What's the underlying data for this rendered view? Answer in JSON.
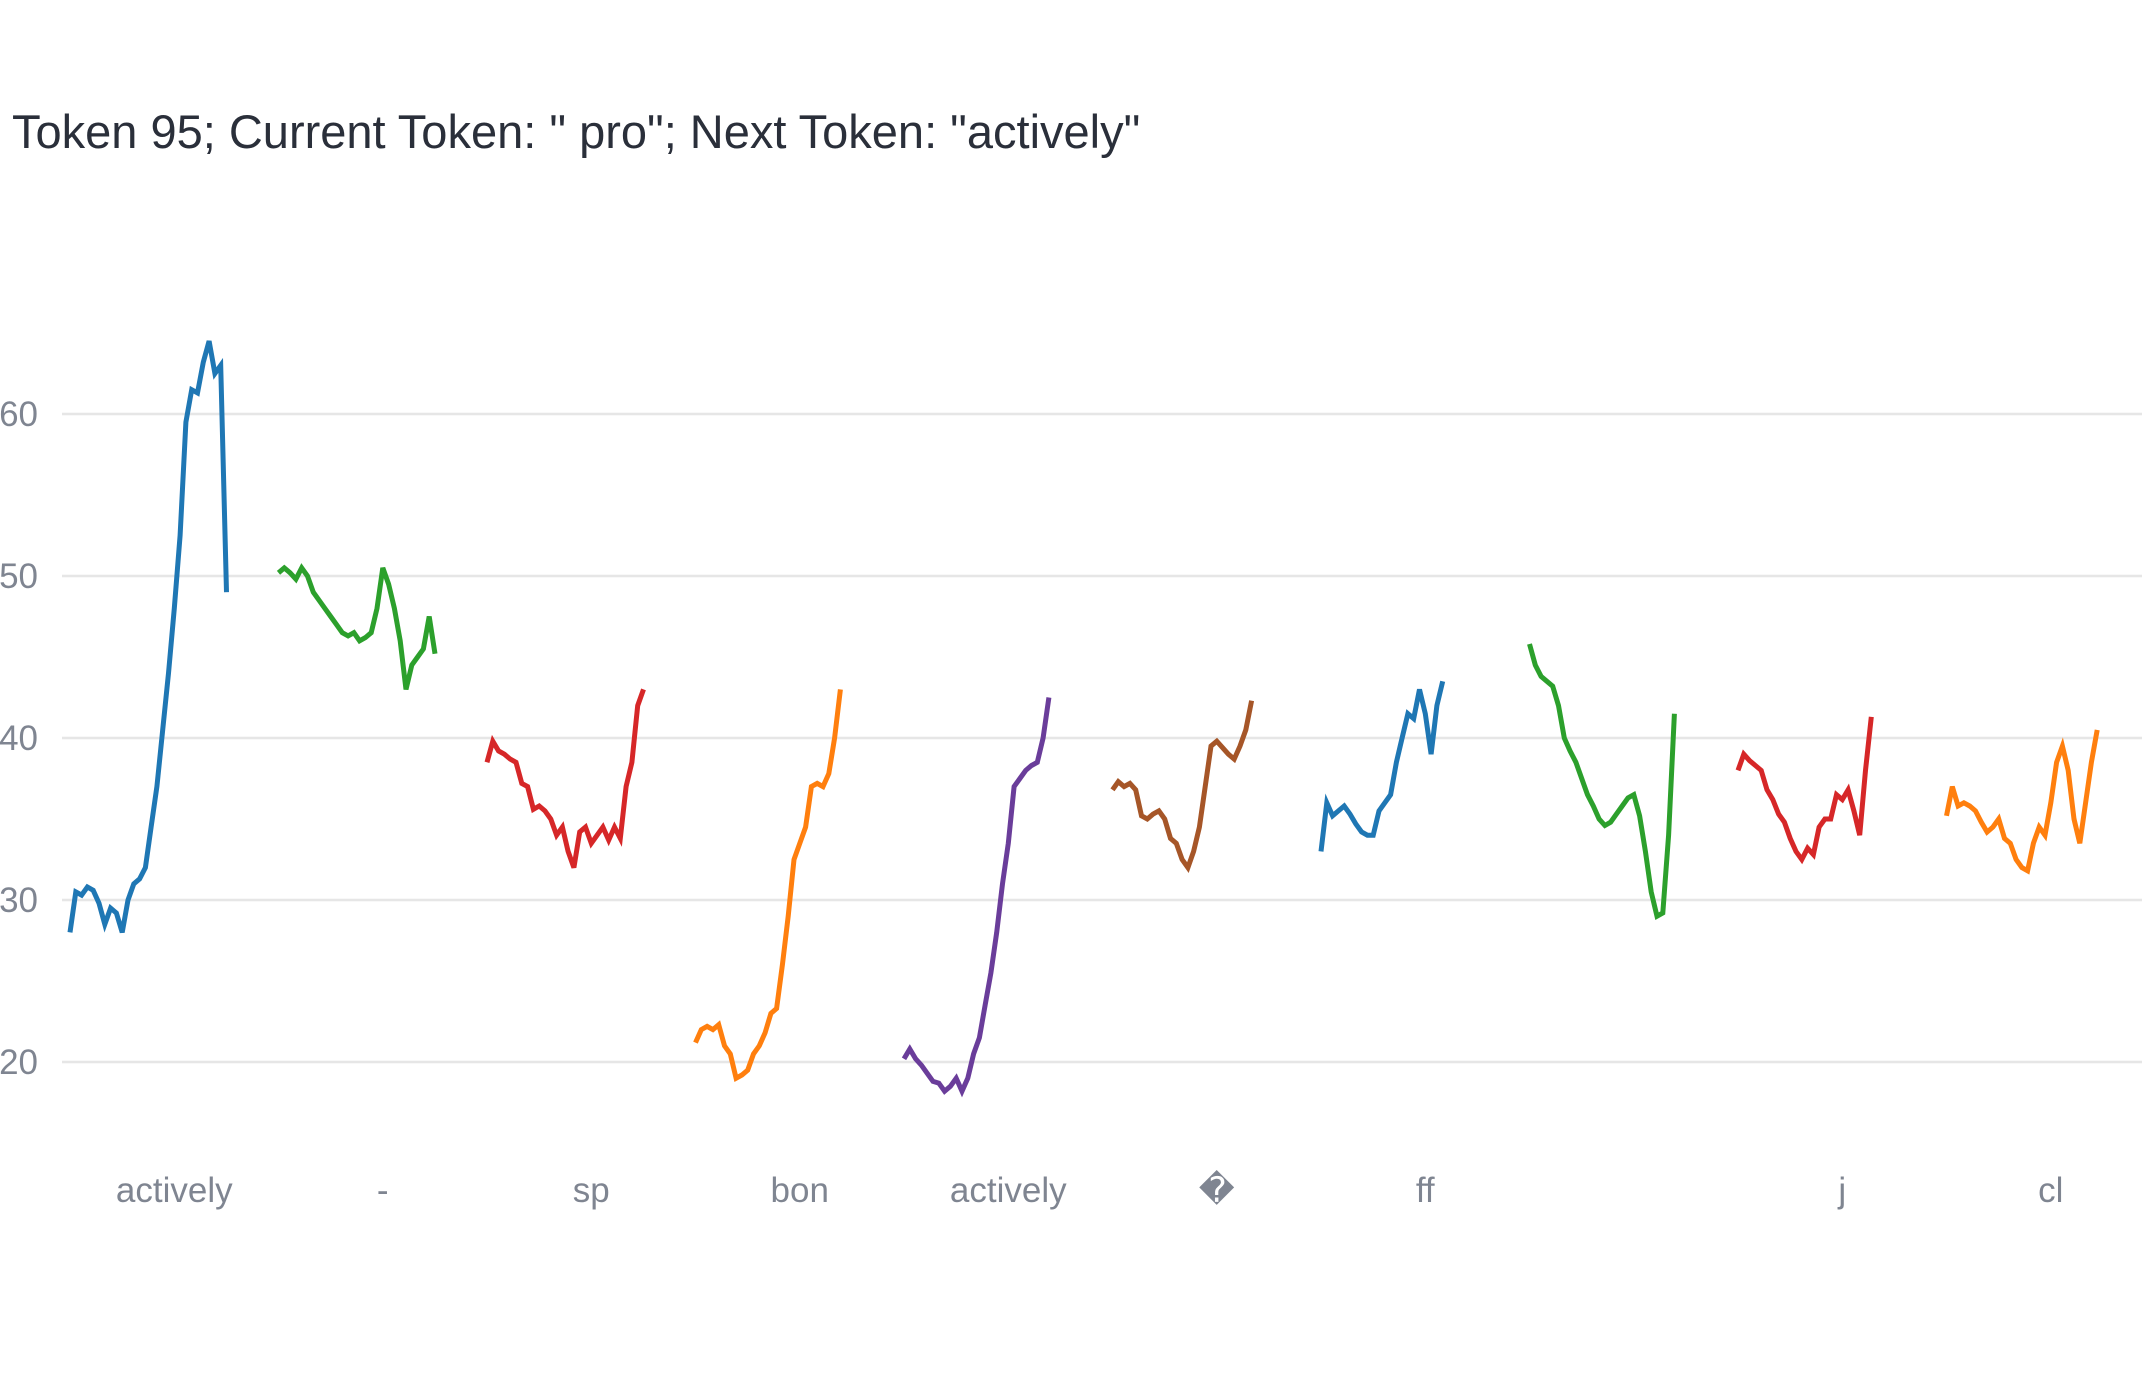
{
  "chart_data": {
    "type": "line",
    "title": "Token 95; Current Token: \" pro\"; Next Token: \"actively\"",
    "xlabel": "",
    "ylabel": "",
    "grid": true,
    "legend": "none",
    "yticks": [
      20,
      30,
      40,
      50,
      60
    ],
    "ylim": [
      14,
      68
    ],
    "xlim": [
      -0.5,
      10.5
    ],
    "x_tick_positions": [
      0.5,
      1.5,
      2.5,
      3.5,
      4.5,
      5.5,
      6.5,
      8.5,
      9.5
    ],
    "x_tick_labels": [
      "actively",
      "-",
      "sp",
      "bon",
      "actively",
      "�",
      "ff",
      "j",
      "cl"
    ],
    "series": [
      {
        "color": "#1f77b4",
        "x0": 0.0,
        "dx": 0.0278,
        "values": [
          28,
          30.5,
          30.3,
          30.8,
          30.6,
          29.8,
          28.5,
          29.5,
          29.2,
          28,
          30,
          31,
          31.3,
          32,
          34.5,
          37,
          40.5,
          44,
          48,
          52.5,
          59.5,
          61.5,
          61.3,
          63.2,
          64.5,
          62.5,
          63,
          49
        ]
      },
      {
        "color": "#2ca02c",
        "x0": 1.0,
        "dx": 0.0278,
        "values": [
          50.2,
          50.5,
          50.2,
          49.8,
          50.5,
          50,
          49,
          48.5,
          48,
          47.5,
          47,
          46.5,
          46.3,
          46.5,
          46,
          46.2,
          46.5,
          48,
          50.5,
          49.5,
          48,
          46,
          43,
          44.5,
          45,
          45.5,
          47.5,
          45.2
        ]
      },
      {
        "color": "#d62728",
        "x0": 2.0,
        "dx": 0.0278,
        "values": [
          38.5,
          39.8,
          39.2,
          39,
          38.7,
          38.5,
          37.2,
          37,
          35.6,
          35.8,
          35.5,
          35,
          34,
          34.5,
          33,
          32,
          34.2,
          34.5,
          33.5,
          34,
          34.5,
          33.7,
          34.5,
          33.8,
          37,
          38.5,
          42,
          43
        ]
      },
      {
        "color": "#ff7f0e",
        "x0": 3.0,
        "dx": 0.0278,
        "values": [
          21.2,
          22,
          22.2,
          22,
          22.3,
          21,
          20.5,
          19,
          19.2,
          19.5,
          20.5,
          21,
          21.8,
          23,
          23.3,
          26,
          29,
          32.5,
          33.5,
          34.5,
          37,
          37.2,
          37,
          37.8,
          40,
          43
        ]
      },
      {
        "color": "#6a3d9a",
        "x0": 4.0,
        "dx": 0.0278,
        "values": [
          20.2,
          20.8,
          20.2,
          19.8,
          19.3,
          18.8,
          18.7,
          18.2,
          18.5,
          19,
          18.2,
          19,
          20.5,
          21.5,
          23.5,
          25.5,
          28,
          31,
          33.5,
          37,
          37.5,
          38,
          38.3,
          38.5,
          40,
          42.5
        ]
      },
      {
        "color": "#a65628",
        "x0": 5.0,
        "dx": 0.0278,
        "values": [
          36.8,
          37.3,
          37,
          37.2,
          36.8,
          35.2,
          35,
          35.3,
          35.5,
          35,
          33.8,
          33.5,
          32.5,
          32,
          33,
          34.5,
          37,
          39.5,
          39.8,
          39.4,
          39,
          38.7,
          39.5,
          40.5,
          42.3
        ]
      },
      {
        "color": "#1f77b4",
        "x0": 6.0,
        "dx": 0.0278,
        "values": [
          33,
          36,
          35.2,
          35.5,
          35.8,
          35.3,
          34.7,
          34.2,
          34,
          34,
          35.5,
          36,
          36.5,
          38.5,
          40,
          41.5,
          41.2,
          43,
          41.5,
          39,
          42,
          43.5
        ]
      },
      {
        "color": "#2ca02c",
        "x0": 7.0,
        "dx": 0.0278,
        "values": [
          45.8,
          44.5,
          43.8,
          43.5,
          43.2,
          42,
          40,
          39.2,
          38.5,
          37.5,
          36.5,
          35.8,
          35,
          34.6,
          34.8,
          35.3,
          35.8,
          36.3,
          36.5,
          35.2,
          33,
          30.5,
          29,
          29.2,
          34,
          41.5
        ]
      },
      {
        "color": "#d62728",
        "x0": 8.0,
        "dx": 0.0278,
        "values": [
          38,
          39,
          38.6,
          38.3,
          38,
          36.8,
          36.2,
          35.3,
          34.8,
          33.8,
          33,
          32.5,
          33.2,
          32.8,
          34.5,
          35,
          35,
          36.5,
          36.2,
          36.8,
          35.5,
          34,
          38,
          41.3
        ]
      },
      {
        "color": "#ff7f0e",
        "x0": 9.0,
        "dx": 0.0278,
        "values": [
          35.2,
          37,
          35.8,
          36,
          35.8,
          35.5,
          34.8,
          34.2,
          34.5,
          35,
          33.8,
          33.5,
          32.5,
          32,
          31.8,
          33.5,
          34.5,
          34,
          36,
          38.5,
          39.5,
          38,
          35,
          33.5,
          36,
          38.5,
          40.5
        ]
      }
    ]
  }
}
